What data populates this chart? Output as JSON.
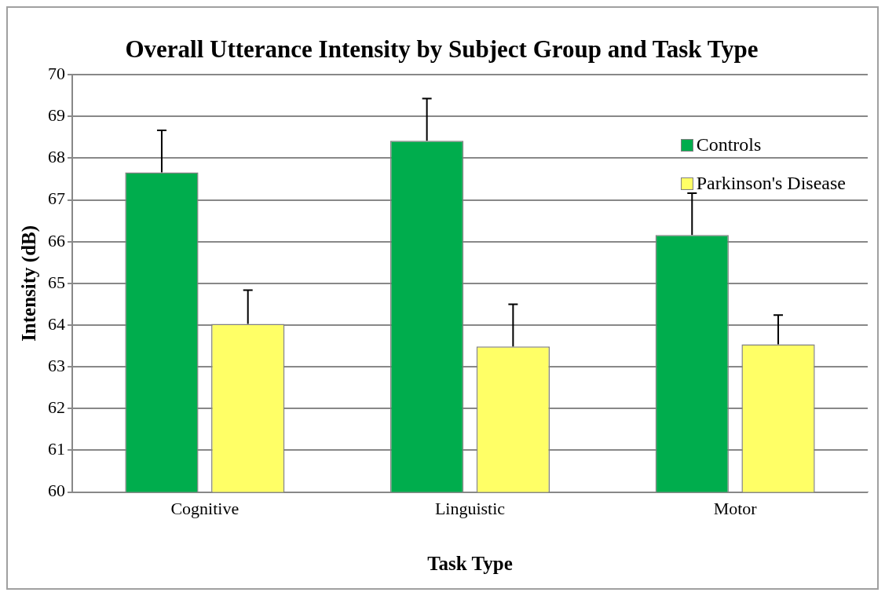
{
  "chart_data": {
    "type": "bar",
    "title": "Overall Utterance Intensity by Subject Group and Task Type",
    "xlabel": "Task Type",
    "ylabel": "Intensity (dB)",
    "categories": [
      "Cognitive",
      "Linguistic",
      "Motor"
    ],
    "series": [
      {
        "name": "Controls",
        "color": "#00ad4d",
        "values": [
          67.66,
          68.42,
          66.16
        ],
        "errors": [
          [
            67.66,
            68.67
          ],
          [
            68.42,
            69.43
          ],
          [
            66.16,
            67.16
          ]
        ]
      },
      {
        "name": "Parkinson's Disease",
        "color": "#ffff66",
        "values": [
          64.03,
          63.49,
          63.54
        ],
        "errors": [
          [
            64.03,
            64.84
          ],
          [
            63.49,
            64.5
          ],
          [
            63.54,
            64.24
          ]
        ]
      }
    ],
    "ylim": [
      60,
      70
    ],
    "yticks": [
      60,
      61,
      62,
      63,
      64,
      65,
      66,
      67,
      68,
      69,
      70
    ],
    "grid": "y",
    "legend": "top right"
  }
}
